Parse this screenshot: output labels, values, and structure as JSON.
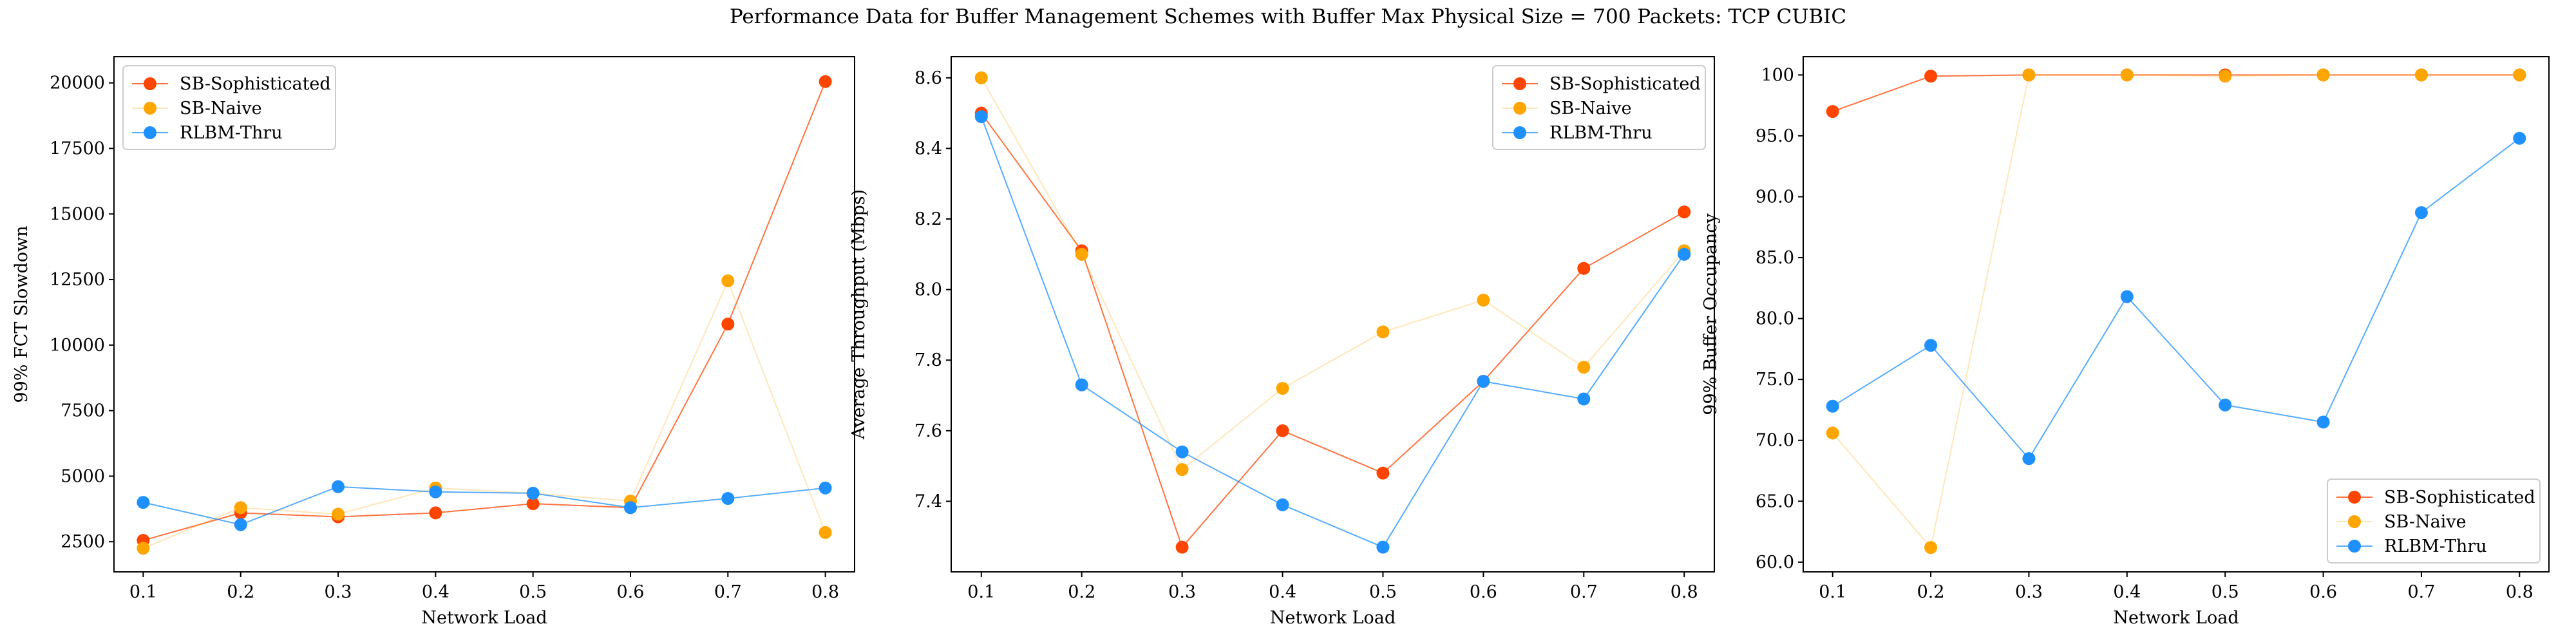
{
  "figure": {
    "title": "Performance Data for Buffer Management Schemes with Buffer Max Physical Size = 700 Packets: TCP CUBIC"
  },
  "series_colors": {
    "SB-Sophisticated": "#ff4500",
    "SB-Naive": "#ffa500",
    "RLBM-Thru": "#1e90ff"
  },
  "chart_data": [
    {
      "type": "line",
      "xlabel": "Network Load",
      "ylabel": "99% FCT Slowdown",
      "x": [
        0.1,
        0.2,
        0.3,
        0.4,
        0.5,
        0.6,
        0.7,
        0.8
      ],
      "xlim": [
        0.07,
        0.83
      ],
      "ylim": [
        1350,
        21000
      ],
      "xticks": [
        0.1,
        0.2,
        0.3,
        0.4,
        0.5,
        0.6,
        0.7,
        0.8
      ],
      "yticks": [
        2500,
        5000,
        7500,
        10000,
        12500,
        15000,
        17500,
        20000
      ],
      "legend": "upper left",
      "grid": false,
      "series": [
        {
          "name": "SB-Sophisticated",
          "values": [
            2550,
            3600,
            3450,
            3600,
            3950,
            3800,
            10800,
            20050
          ]
        },
        {
          "name": "SB-Naive",
          "values": [
            2250,
            3800,
            3550,
            4550,
            4350,
            4050,
            12450,
            2850
          ]
        },
        {
          "name": "RLBM-Thru",
          "values": [
            4000,
            3150,
            4600,
            4400,
            4350,
            3800,
            4150,
            4550
          ]
        }
      ]
    },
    {
      "type": "line",
      "xlabel": "Network Load",
      "ylabel": "Average Throughput (Mbps)",
      "x": [
        0.1,
        0.2,
        0.3,
        0.4,
        0.5,
        0.6,
        0.7,
        0.8
      ],
      "xlim": [
        0.07,
        0.83
      ],
      "ylim": [
        7.2,
        8.66
      ],
      "xticks": [
        0.1,
        0.2,
        0.3,
        0.4,
        0.5,
        0.6,
        0.7,
        0.8
      ],
      "yticks": [
        7.4,
        7.6,
        7.8,
        8.0,
        8.2,
        8.4,
        8.6
      ],
      "legend": "upper right",
      "grid": false,
      "series": [
        {
          "name": "SB-Sophisticated",
          "values": [
            8.5,
            8.11,
            7.27,
            7.6,
            7.48,
            7.74,
            8.06,
            8.22
          ]
        },
        {
          "name": "SB-Naive",
          "values": [
            8.6,
            8.1,
            7.49,
            7.72,
            7.88,
            7.97,
            7.78,
            8.11
          ]
        },
        {
          "name": "RLBM-Thru",
          "values": [
            8.49,
            7.73,
            7.54,
            7.39,
            7.27,
            7.74,
            7.69,
            8.1
          ]
        }
      ]
    },
    {
      "type": "line",
      "xlabel": "Network Load",
      "ylabel": "99% Buffer Occupancy",
      "x": [
        0.1,
        0.2,
        0.3,
        0.4,
        0.5,
        0.6,
        0.7,
        0.8
      ],
      "xlim": [
        0.07,
        0.83
      ],
      "ylim": [
        59.2,
        101.5
      ],
      "xticks": [
        0.1,
        0.2,
        0.3,
        0.4,
        0.5,
        0.6,
        0.7,
        0.8
      ],
      "yticks": [
        60,
        65,
        70,
        75,
        80,
        85,
        90,
        95,
        100
      ],
      "legend": "lower right",
      "grid": false,
      "series": [
        {
          "name": "SB-Sophisticated",
          "values": [
            97.0,
            99.9,
            100.0,
            100.0,
            100.0,
            100.0,
            100.0,
            100.0
          ]
        },
        {
          "name": "SB-Naive",
          "values": [
            70.6,
            61.2,
            100.0,
            100.0,
            99.9,
            100.0,
            100.0,
            100.0
          ]
        },
        {
          "name": "RLBM-Thru",
          "values": [
            72.8,
            77.8,
            68.5,
            81.8,
            72.9,
            71.5,
            88.7,
            94.8
          ]
        }
      ]
    }
  ]
}
